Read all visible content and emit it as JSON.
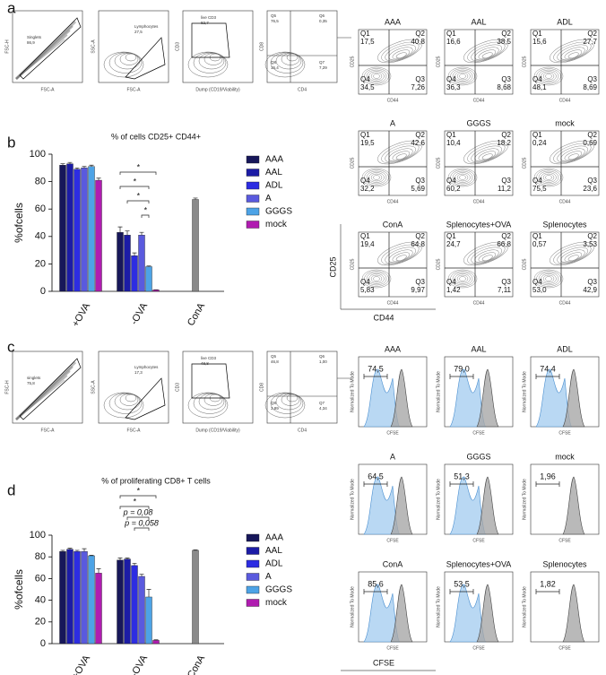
{
  "panel_labels": [
    "a",
    "b",
    "c",
    "d"
  ],
  "chart_data": [
    {
      "type": "bar",
      "title": "% of cells CD25+ CD44+",
      "y_label": "%ofcells",
      "categories": [
        "+OVA",
        "-OVA",
        "ConA"
      ],
      "ylim": [
        0,
        100
      ],
      "yticks": [
        0,
        20,
        40,
        60,
        80,
        100
      ],
      "series": [
        {
          "name": "AAA",
          "color": "#17175a",
          "values": [
            92,
            43,
            null
          ],
          "errors": [
            1,
            4,
            null
          ]
        },
        {
          "name": "AAL",
          "color": "#1c1ca6",
          "values": [
            93,
            41,
            null
          ],
          "errors": [
            1,
            3,
            null
          ]
        },
        {
          "name": "ADL",
          "color": "#2d2de2",
          "values": [
            89,
            26,
            null
          ],
          "errors": [
            1,
            2,
            null
          ]
        },
        {
          "name": "A",
          "color": "#5a5ade",
          "values": [
            90,
            41,
            null
          ],
          "errors": [
            1,
            2,
            null
          ]
        },
        {
          "name": "GGGS",
          "color": "#4da3e6",
          "values": [
            91,
            18,
            null
          ],
          "errors": [
            1,
            0.5,
            null
          ]
        },
        {
          "name": "mock",
          "color": "#b01cb0",
          "values": [
            81,
            1,
            null
          ],
          "errors": [
            1.5,
            0.2,
            null
          ]
        },
        {
          "color": "#8a8a8a",
          "values": [
            null,
            null,
            67
          ],
          "errors": [
            null,
            null,
            1
          ]
        }
      ],
      "annotations": [
        "*",
        "*",
        "*",
        "*"
      ]
    },
    {
      "type": "bar",
      "title": "% of proliferating CD8+ T cells",
      "y_label": "%ofcells",
      "categories": [
        "+OVA",
        "-OVA",
        "ConA"
      ],
      "ylim": [
        0,
        100
      ],
      "yticks": [
        0,
        20,
        40,
        60,
        80,
        100
      ],
      "series": [
        {
          "name": "AAA",
          "color": "#17175a",
          "values": [
            85,
            77,
            null
          ],
          "errors": [
            1,
            2,
            null
          ]
        },
        {
          "name": "AAL",
          "color": "#1c1ca6",
          "values": [
            87,
            78,
            null
          ],
          "errors": [
            1,
            1,
            null
          ]
        },
        {
          "name": "ADL",
          "color": "#2d2de2",
          "values": [
            85,
            72,
            null
          ],
          "errors": [
            1,
            2,
            null
          ]
        },
        {
          "name": "A",
          "color": "#5a5ade",
          "values": [
            85,
            62,
            null
          ],
          "errors": [
            2.5,
            2,
            null
          ]
        },
        {
          "name": "GGGS",
          "color": "#4da3e6",
          "values": [
            81,
            43,
            null
          ],
          "errors": [
            0.5,
            7,
            null
          ]
        },
        {
          "name": "mock",
          "color": "#b01cb0",
          "values": [
            65,
            3,
            null
          ],
          "errors": [
            4,
            0.5,
            null
          ]
        },
        {
          "color": "#8a8a8a",
          "values": [
            null,
            null,
            86
          ],
          "errors": [
            null,
            null,
            0.5
          ]
        }
      ],
      "annotations": [
        "*",
        "*",
        "p = 0,08",
        "p = 0,058"
      ]
    }
  ],
  "gating": [
    {
      "plots": [
        {
          "x_label": "FSC-A",
          "y_label": "FSC-H",
          "gate": "Singlets",
          "value": "86,9"
        },
        {
          "x_label": "FSC-A",
          "y_label": "SSC-A",
          "gate": "Lymphocytes",
          "value": "27,5"
        },
        {
          "x_label": "Dump (CD19/Viability)",
          "y_label": "CD3",
          "gate": "live CD3",
          "value": "82,7"
        },
        {
          "x_label": "CD4",
          "y_label": "CD8",
          "quadrants": [
            {
              "name": "Q5",
              "value": "76,5"
            },
            {
              "name": "Q6",
              "value": "0,35"
            },
            {
              "name": "Q7",
              "value": "7,29"
            },
            {
              "name": "Q8",
              "value": "15,4"
            }
          ]
        }
      ]
    },
    {
      "plots": [
        {
          "x_label": "FSC-A",
          "y_label": "FSC-H",
          "gate": "singlets",
          "value": "75,8"
        },
        {
          "x_label": "FSC-A",
          "y_label": "SSC-A",
          "gate": "Lymphocytes",
          "value": "17,3"
        },
        {
          "x_label": "Dump (CD19/Viability)",
          "y_label": "CD3",
          "gate": "live CD3",
          "value": "48,8"
        },
        {
          "x_label": "CD4",
          "y_label": "CD8",
          "quadrants": [
            {
              "name": "Q5",
              "value": "46,8"
            },
            {
              "name": "Q6",
              "value": "1,00"
            },
            {
              "name": "Q7",
              "value": "4,34"
            },
            {
              "name": "Q8",
              "value": "3,89"
            }
          ]
        }
      ]
    }
  ],
  "quadrant_plots": {
    "y_label": "CD25",
    "x_label": "CD44",
    "quadrant_names": [
      "Q1",
      "Q2",
      "Q3",
      "Q4"
    ],
    "plots": [
      {
        "title": "AAA",
        "values": [
          "17,5",
          "40,8",
          "7,26",
          "34,5"
        ]
      },
      {
        "title": "AAL",
        "values": [
          "16,6",
          "38,5",
          "8,68",
          "36,3"
        ]
      },
      {
        "title": "ADL",
        "values": [
          "15,6",
          "27,7",
          "8,69",
          "48,1"
        ]
      },
      {
        "title": "A",
        "values": [
          "19,5",
          "42,6",
          "5,69",
          "32,2"
        ]
      },
      {
        "title": "GGGS",
        "values": [
          "10,4",
          "18,2",
          "11,2",
          "60,2"
        ]
      },
      {
        "title": "mock",
        "values": [
          "0,24",
          "0,69",
          "23,6",
          "75,5"
        ]
      },
      {
        "title": "ConA",
        "values": [
          "19,4",
          "64,8",
          "9,97",
          "5,83"
        ]
      },
      {
        "title": "Splenocytes+OVA",
        "values": [
          "24,7",
          "66,8",
          "7,11",
          "1,42"
        ]
      },
      {
        "title": "Splenocytes",
        "values": [
          "0,57",
          "3,53",
          "42,9",
          "53,0"
        ]
      }
    ]
  },
  "histograms": {
    "x_label": "CFSE",
    "y_label": "Normalized To Mode",
    "plots": [
      {
        "title": "AAA",
        "value": "74,5"
      },
      {
        "title": "AAL",
        "value": "79,0"
      },
      {
        "title": "ADL",
        "value": "74,4"
      },
      {
        "title": "A",
        "value": "64,5"
      },
      {
        "title": "GGGS",
        "value": "51,3"
      },
      {
        "title": "mock",
        "value": "1,96"
      },
      {
        "title": "ConA",
        "value": "85,6"
      },
      {
        "title": "Splenocytes+OVA",
        "value": "53,5"
      },
      {
        "title": "Splenocytes",
        "value": "1,82"
      }
    ]
  }
}
